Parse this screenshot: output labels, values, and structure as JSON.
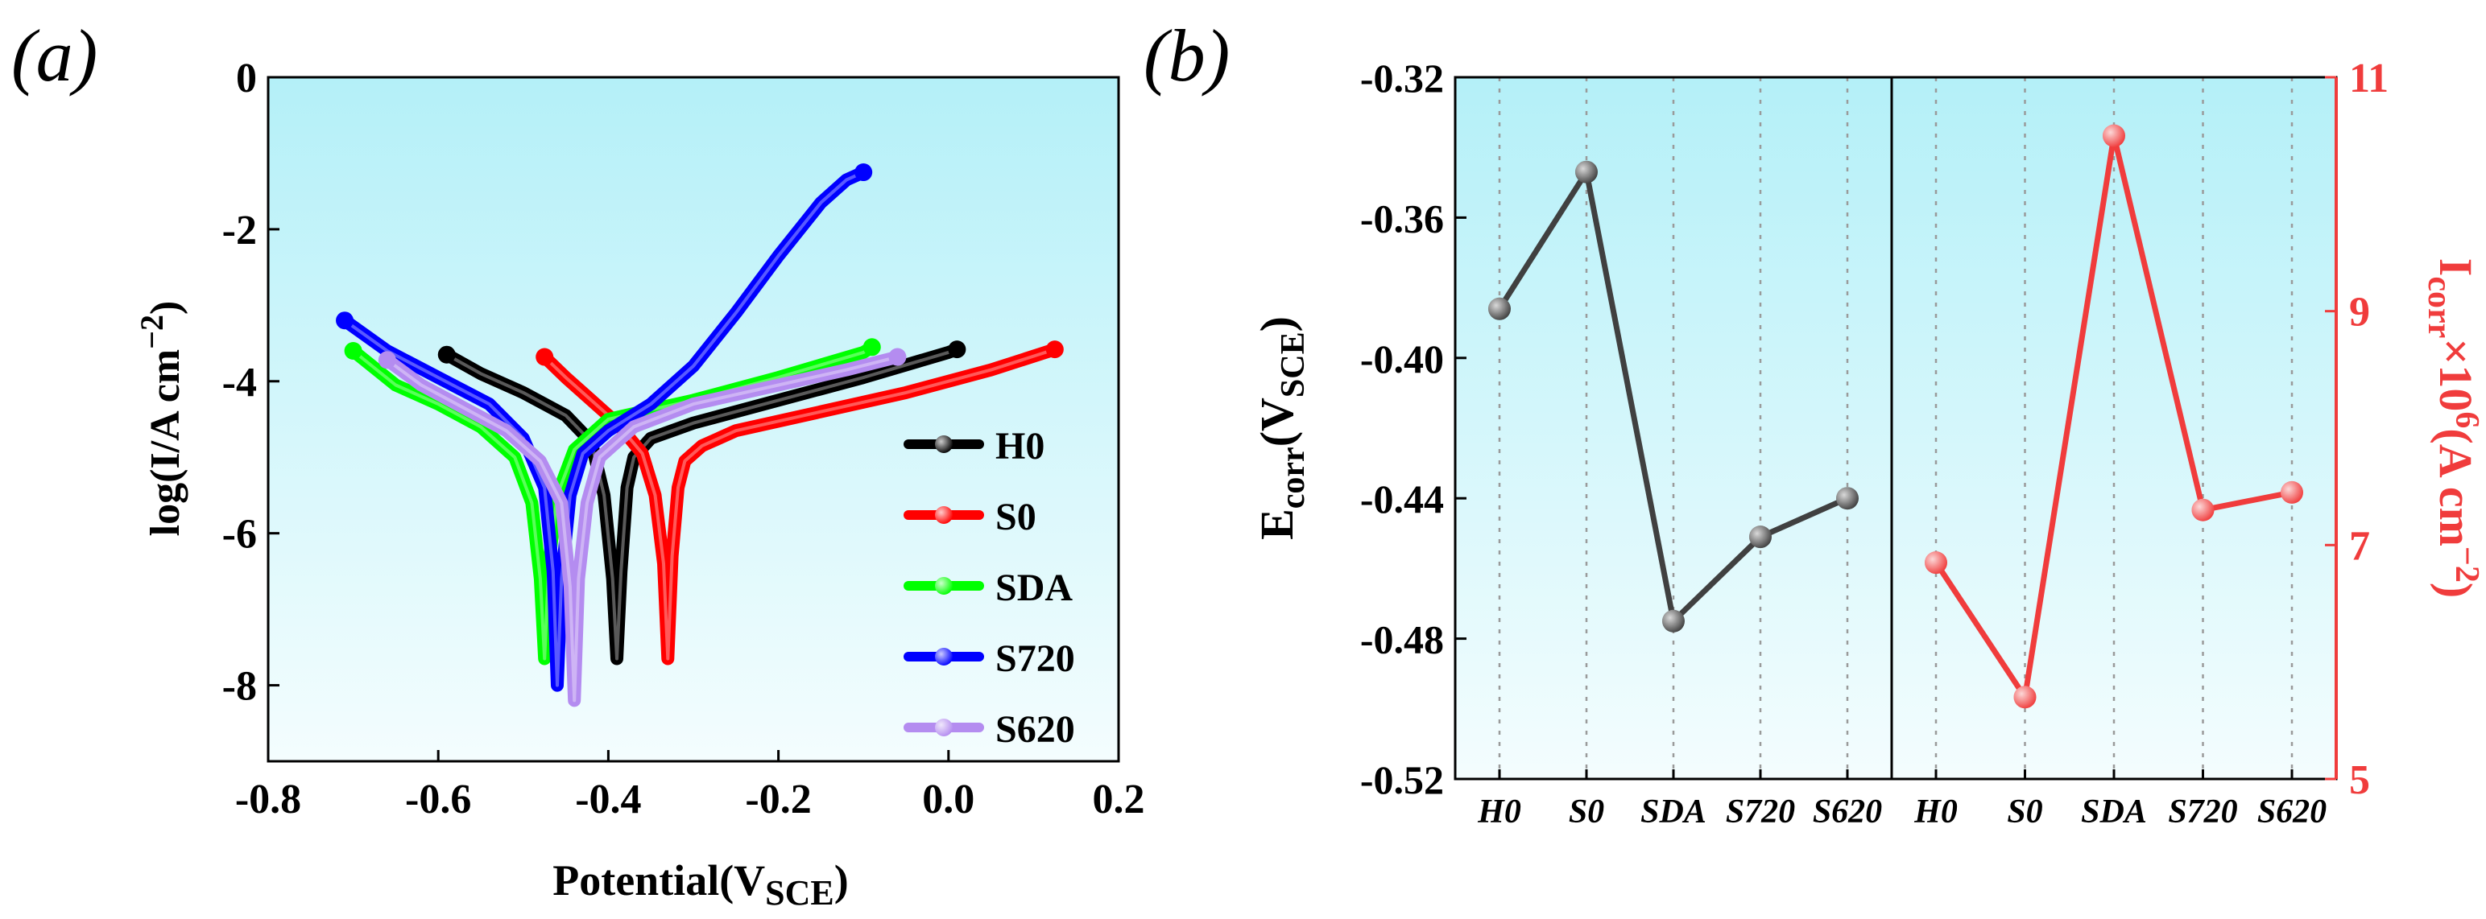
{
  "chart_data": [
    {
      "panel": "(a)",
      "type": "line",
      "title": "",
      "xlabel": {
        "main": "Potential(V",
        "sub": "SCE",
        "close": ")"
      },
      "ylabel": {
        "main": "log(I/A cm",
        "sup": "−2",
        "close": ")"
      },
      "xlim": [
        -0.8,
        0.2
      ],
      "ylim": [
        -9,
        0
      ],
      "xticks": [
        -0.8,
        -0.6,
        -0.4,
        -0.2,
        0.0,
        0.2
      ],
      "xtick_labels": [
        "-0.8",
        "-0.6",
        "-0.4",
        "-0.2",
        "0.0",
        "0.2"
      ],
      "yticks": [
        0,
        -2,
        -4,
        -6,
        -8
      ],
      "ytick_labels": [
        "0",
        "-2",
        "-4",
        "-6",
        "-8"
      ],
      "grid": false,
      "legend_position": "lower-right",
      "series": [
        {
          "name": "H0",
          "color": "#000000",
          "x": [
            -0.59,
            -0.55,
            -0.5,
            -0.45,
            -0.42,
            -0.405,
            -0.395,
            -0.39,
            -0.385,
            -0.378,
            -0.37,
            -0.35,
            -0.3,
            -0.2,
            -0.1,
            0.0,
            0.01
          ],
          "y": [
            -3.65,
            -3.9,
            -4.15,
            -4.45,
            -4.8,
            -5.5,
            -6.6,
            -7.65,
            -6.5,
            -5.4,
            -5.0,
            -4.75,
            -4.55,
            -4.25,
            -3.95,
            -3.62,
            -3.58
          ]
        },
        {
          "name": "S0",
          "color": "#ff0000",
          "x": [
            -0.475,
            -0.45,
            -0.42,
            -0.39,
            -0.36,
            -0.345,
            -0.335,
            -0.33,
            -0.325,
            -0.318,
            -0.31,
            -0.29,
            -0.25,
            -0.15,
            -0.05,
            0.05,
            0.125
          ],
          "y": [
            -3.68,
            -3.95,
            -4.25,
            -4.55,
            -4.95,
            -5.5,
            -6.4,
            -7.65,
            -6.3,
            -5.4,
            -5.05,
            -4.85,
            -4.65,
            -4.4,
            -4.15,
            -3.85,
            -3.58
          ]
        },
        {
          "name": "SDA",
          "color": "#00ff00",
          "x": [
            -0.7,
            -0.65,
            -0.6,
            -0.55,
            -0.51,
            -0.49,
            -0.48,
            -0.475,
            -0.47,
            -0.46,
            -0.44,
            -0.4,
            -0.3,
            -0.2,
            -0.1,
            -0.09
          ],
          "y": [
            -3.6,
            -4.05,
            -4.3,
            -4.6,
            -5.0,
            -5.6,
            -6.6,
            -7.65,
            -6.4,
            -5.5,
            -4.9,
            -4.5,
            -4.25,
            -3.95,
            -3.62,
            -3.55
          ]
        },
        {
          "name": "S720",
          "color": "#0000ff",
          "x": [
            -0.71,
            -0.66,
            -0.6,
            -0.54,
            -0.5,
            -0.475,
            -0.465,
            -0.46,
            -0.455,
            -0.445,
            -0.43,
            -0.4,
            -0.35,
            -0.3,
            -0.25,
            -0.2,
            -0.15,
            -0.12,
            -0.1
          ],
          "y": [
            -3.2,
            -3.6,
            -3.95,
            -4.3,
            -4.75,
            -5.4,
            -6.5,
            -8.0,
            -6.6,
            -5.5,
            -4.95,
            -4.65,
            -4.3,
            -3.8,
            -3.1,
            -2.35,
            -1.65,
            -1.35,
            -1.25
          ]
        },
        {
          "name": "S620",
          "color": "#b48cf0",
          "x": [
            -0.66,
            -0.62,
            -0.57,
            -0.52,
            -0.48,
            -0.455,
            -0.445,
            -0.44,
            -0.435,
            -0.425,
            -0.41,
            -0.37,
            -0.3,
            -0.2,
            -0.12,
            -0.06
          ],
          "y": [
            -3.72,
            -4.05,
            -4.35,
            -4.65,
            -5.05,
            -5.6,
            -6.7,
            -8.2,
            -6.6,
            -5.6,
            -5.0,
            -4.6,
            -4.3,
            -4.05,
            -3.85,
            -3.68
          ]
        }
      ]
    },
    {
      "panel": "(b)",
      "type": "line",
      "title": "",
      "categories": [
        "H0",
        "S0",
        "SDA",
        "S720",
        "S620"
      ],
      "series": [
        {
          "name": "Ecorr",
          "axis": "left",
          "color": "#404040",
          "values": [
            -0.386,
            -0.347,
            -0.475,
            -0.451,
            -0.44
          ]
        },
        {
          "name": "Icorr",
          "axis": "right",
          "color": "#f03c3c",
          "values": [
            6.85,
            5.7,
            10.5,
            7.3,
            7.45
          ]
        }
      ],
      "left_axis": {
        "label": {
          "main": "E",
          "sub1": "corr",
          "mid": "(V",
          "sub2": "SCE",
          "close": ")"
        },
        "ylim": [
          -0.52,
          -0.32
        ],
        "ticks": [
          -0.32,
          -0.36,
          -0.4,
          -0.44,
          -0.48,
          -0.52
        ],
        "tick_labels": [
          "-0.32",
          "-0.36",
          "-0.40",
          "-0.44",
          "-0.48",
          "-0.52"
        ],
        "color": "#000000"
      },
      "right_axis": {
        "label": {
          "main": "I",
          "sub1": "corr",
          "mid": "×10",
          "sup1": "6",
          "mid2": "(A cm",
          "sup2": "−2",
          "close": ")"
        },
        "ylim": [
          5,
          11
        ],
        "ticks": [
          11,
          9,
          7,
          5
        ],
        "tick_labels": [
          "11",
          "9",
          "7",
          "5"
        ],
        "color": "#f03c3c"
      },
      "grid": "vertical dotted at categories",
      "legend_position": "none"
    }
  ],
  "colors": {
    "plot_bg_top": "#b4f0f8",
    "plot_bg_bottom": "#f4fdfe"
  }
}
